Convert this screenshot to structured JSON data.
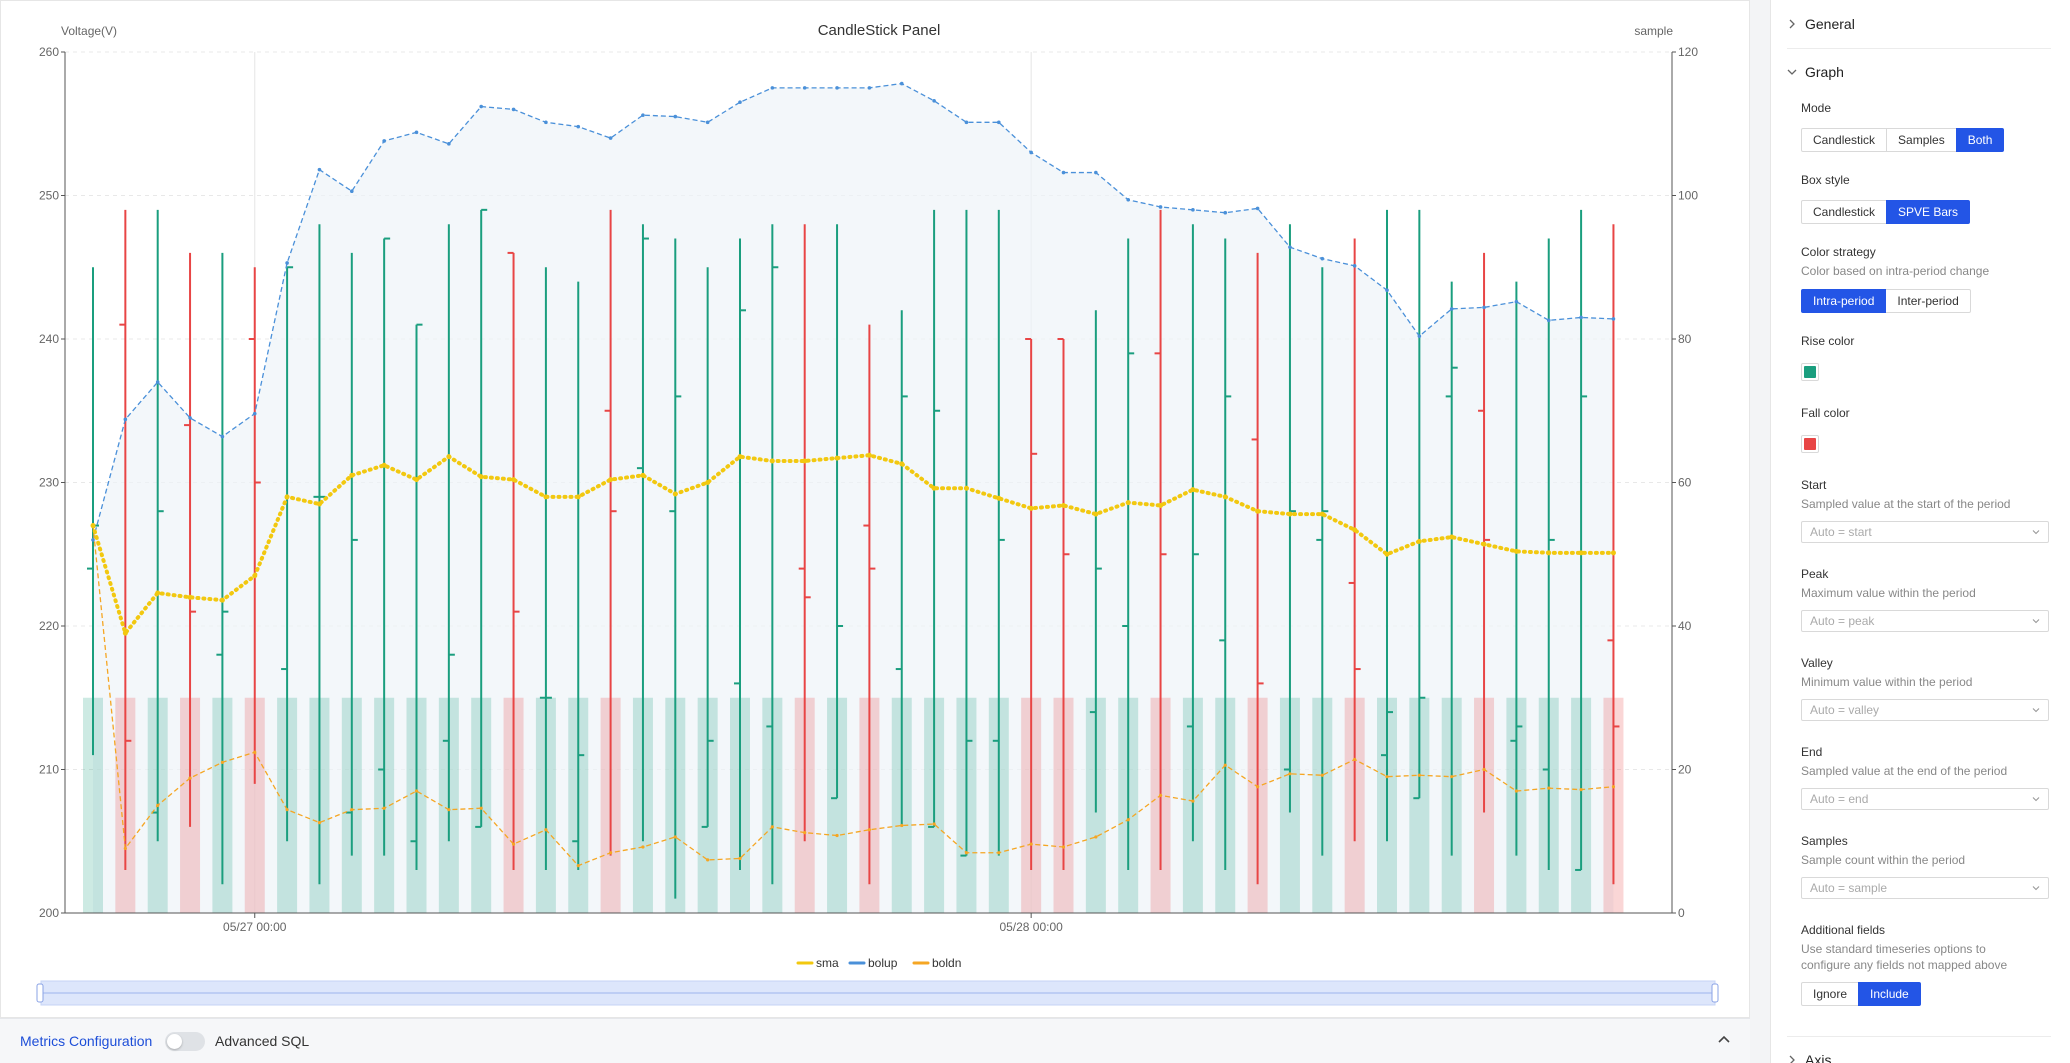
{
  "chart_data": {
    "type": "candlestick",
    "title": "CandleStick Panel",
    "ylabel_left": "Voltage(V)",
    "ylabel_right": "sample",
    "y_left_lim": [
      200,
      260
    ],
    "y_left_ticks": [
      "200",
      "210",
      "220",
      "230",
      "240",
      "250",
      "260"
    ],
    "y_right_lim": [
      0,
      120
    ],
    "y_right_ticks": [
      "0",
      "20",
      "40",
      "60",
      "80",
      "100",
      "120"
    ],
    "x_ticks": [
      {
        "label": "05/27 00:00",
        "index": 5
      },
      {
        "label": "05/28 00:00",
        "index": 29
      }
    ],
    "grid": true,
    "legend_position": "bottom",
    "legend": [
      {
        "name": "sma",
        "color": "#f2c80f"
      },
      {
        "name": "bolup",
        "color": "#4a90d9"
      },
      {
        "name": "boldn",
        "color": "#f5a623"
      }
    ],
    "rise_color": "#1a9e7e",
    "fall_color": "#e84545",
    "candles": [
      {
        "open": 224,
        "high": 245,
        "low": 211,
        "close": 227
      },
      {
        "open": 241,
        "high": 249,
        "low": 203,
        "close": 212
      },
      {
        "open": 207,
        "high": 249,
        "low": 205,
        "close": 228
      },
      {
        "open": 234,
        "high": 246,
        "low": 206,
        "close": 221
      },
      {
        "open": 218,
        "high": 246,
        "low": 202,
        "close": 221
      },
      {
        "open": 240,
        "high": 245,
        "low": 209,
        "close": 230
      },
      {
        "open": 217,
        "high": 245,
        "low": 205,
        "close": 245
      },
      {
        "open": 229,
        "high": 248,
        "low": 202,
        "close": 229
      },
      {
        "open": 207,
        "high": 246,
        "low": 204,
        "close": 226
      },
      {
        "open": 210,
        "high": 247,
        "low": 204,
        "close": 247
      },
      {
        "open": 205,
        "high": 241,
        "low": 203,
        "close": 241
      },
      {
        "open": 212,
        "high": 248,
        "low": 205,
        "close": 218
      },
      {
        "open": 206,
        "high": 249,
        "low": 206,
        "close": 249
      },
      {
        "open": 246,
        "high": 246,
        "low": 203,
        "close": 221
      },
      {
        "open": 215,
        "high": 245,
        "low": 203,
        "close": 215
      },
      {
        "open": 205,
        "high": 244,
        "low": 203,
        "close": 211
      },
      {
        "open": 235,
        "high": 249,
        "low": 204,
        "close": 228
      },
      {
        "open": 231,
        "high": 248,
        "low": 205,
        "close": 247
      },
      {
        "open": 228,
        "high": 247,
        "low": 201,
        "close": 236
      },
      {
        "open": 206,
        "high": 245,
        "low": 206,
        "close": 212
      },
      {
        "open": 216,
        "high": 247,
        "low": 203,
        "close": 242
      },
      {
        "open": 213,
        "high": 248,
        "low": 202,
        "close": 245
      },
      {
        "open": 224,
        "high": 248,
        "low": 205,
        "close": 222
      },
      {
        "open": 208,
        "high": 248,
        "low": 208,
        "close": 220
      },
      {
        "open": 227,
        "high": 241,
        "low": 202,
        "close": 224
      },
      {
        "open": 217,
        "high": 242,
        "low": 206,
        "close": 236
      },
      {
        "open": 206,
        "high": 249,
        "low": 206,
        "close": 235
      },
      {
        "open": 204,
        "high": 249,
        "low": 204,
        "close": 212
      },
      {
        "open": 212,
        "high": 249,
        "low": 204,
        "close": 226
      },
      {
        "open": 240,
        "high": 240,
        "low": 203,
        "close": 232
      },
      {
        "open": 240,
        "high": 240,
        "low": 203,
        "close": 225
      },
      {
        "open": 214,
        "high": 242,
        "low": 207,
        "close": 224
      },
      {
        "open": 220,
        "high": 247,
        "low": 203,
        "close": 239
      },
      {
        "open": 239,
        "high": 249,
        "low": 203,
        "close": 225
      },
      {
        "open": 213,
        "high": 248,
        "low": 205,
        "close": 225
      },
      {
        "open": 219,
        "high": 247,
        "low": 203,
        "close": 236
      },
      {
        "open": 233,
        "high": 246,
        "low": 202,
        "close": 216
      },
      {
        "open": 210,
        "high": 248,
        "low": 207,
        "close": 228
      },
      {
        "open": 226,
        "high": 245,
        "low": 204,
        "close": 228
      },
      {
        "open": 223,
        "high": 247,
        "low": 205,
        "close": 217
      },
      {
        "open": 211,
        "high": 249,
        "low": 205,
        "close": 214
      },
      {
        "open": 208,
        "high": 249,
        "low": 208,
        "close": 215
      },
      {
        "open": 236,
        "high": 244,
        "low": 204,
        "close": 238
      },
      {
        "open": 235,
        "high": 246,
        "low": 207,
        "close": 226
      },
      {
        "open": 212,
        "high": 244,
        "low": 204,
        "close": 213
      },
      {
        "open": 210,
        "high": 247,
        "low": 203,
        "close": 226
      },
      {
        "open": 203,
        "high": 249,
        "low": 203,
        "close": 236
      },
      {
        "open": 219,
        "high": 248,
        "low": 202,
        "close": 213
      }
    ],
    "samples": [
      30,
      30,
      30,
      30,
      30,
      30,
      30,
      30,
      30,
      30,
      30,
      30,
      30,
      30,
      30,
      30,
      30,
      30,
      30,
      30,
      30,
      30,
      30,
      30,
      30,
      30,
      30,
      30,
      30,
      30,
      30,
      30,
      30,
      30,
      30,
      30,
      30,
      30,
      30,
      30,
      30,
      30,
      30,
      30,
      30,
      30,
      30,
      30
    ],
    "sma": [
      227,
      219.5,
      222.3,
      222,
      221.8,
      223.5,
      229,
      228.5,
      230.5,
      231.2,
      230.2,
      231.8,
      230.4,
      230.2,
      229,
      229,
      230.2,
      230.5,
      229.2,
      230,
      231.8,
      231.5,
      231.5,
      231.7,
      231.9,
      231.3,
      229.6,
      229.6,
      228.9,
      228.2,
      228.4,
      227.8,
      228.6,
      228.4,
      229.5,
      229,
      228,
      227.8,
      227.8,
      226.7,
      225,
      225.9,
      226.2,
      225.7,
      225.2,
      225.1,
      225.1,
      225.1
    ],
    "bolup": [
      226,
      234.4,
      237,
      234.5,
      233.2,
      234.8,
      245.3,
      251.8,
      250.3,
      253.8,
      254.4,
      253.6,
      256.2,
      256,
      255.1,
      254.8,
      254,
      255.6,
      255.5,
      255.1,
      256.5,
      257.5,
      257.5,
      257.5,
      257.5,
      257.8,
      256.6,
      255.1,
      255.1,
      253,
      251.6,
      251.6,
      249.7,
      249.2,
      249,
      248.8,
      249.1,
      246.4,
      245.6,
      245.1,
      243.4,
      240.2,
      242.1,
      242.2,
      242.6,
      241.3,
      241.5,
      241.4
    ],
    "boldn": [
      227,
      204.5,
      207.5,
      209.4,
      210.5,
      211.2,
      207.2,
      206.3,
      207.2,
      207.3,
      208.5,
      207.2,
      207.3,
      204.8,
      205.8,
      203.3,
      204.2,
      204.6,
      205.3,
      203.7,
      203.8,
      206,
      205.6,
      205.4,
      205.8,
      206.1,
      206.2,
      204.2,
      204.2,
      204.8,
      204.6,
      205.3,
      206.5,
      208.2,
      207.8,
      210.3,
      208.8,
      209.7,
      209.6,
      210.7,
      209.5,
      209.6,
      209.5,
      210,
      208.5,
      208.7,
      208.6,
      208.8
    ]
  },
  "bottom_bar": {
    "metrics_link": "Metrics Configuration",
    "advanced_sql_label": "Advanced SQL"
  },
  "side_panel": {
    "general_label": "General",
    "graph_label": "Graph",
    "mode": {
      "label": "Mode",
      "options": [
        "Candlestick",
        "Samples",
        "Both"
      ],
      "selected": "Both"
    },
    "box_style": {
      "label": "Box style",
      "options": [
        "Candlestick",
        "SPVE Bars"
      ],
      "selected": "SPVE Bars"
    },
    "color_strategy": {
      "label": "Color strategy",
      "description": "Color based on intra-period change",
      "options": [
        "Intra-period",
        "Inter-period"
      ],
      "selected": "Intra-period"
    },
    "rise_color": {
      "label": "Rise color",
      "value": "#1a9e7e"
    },
    "fall_color": {
      "label": "Fall color",
      "value": "#e84545"
    },
    "start": {
      "label": "Start",
      "description": "Sampled value at the start of the period",
      "placeholder": "Auto = start"
    },
    "peak": {
      "label": "Peak",
      "description": "Maximum value within the period",
      "placeholder": "Auto = peak"
    },
    "valley": {
      "label": "Valley",
      "description": "Minimum value within the period",
      "placeholder": "Auto = valley"
    },
    "end": {
      "label": "End",
      "description": "Sampled value at the end of the period",
      "placeholder": "Auto = end"
    },
    "samples": {
      "label": "Samples",
      "description": "Sample count within the period",
      "placeholder": "Auto = sample"
    },
    "additional_fields": {
      "label": "Additional fields",
      "description_line1": "Use standard timeseries options to",
      "description_line2": "configure any fields not mapped above",
      "options": [
        "Ignore",
        "Include"
      ],
      "selected": "Include"
    },
    "axis_label": "Axis"
  }
}
